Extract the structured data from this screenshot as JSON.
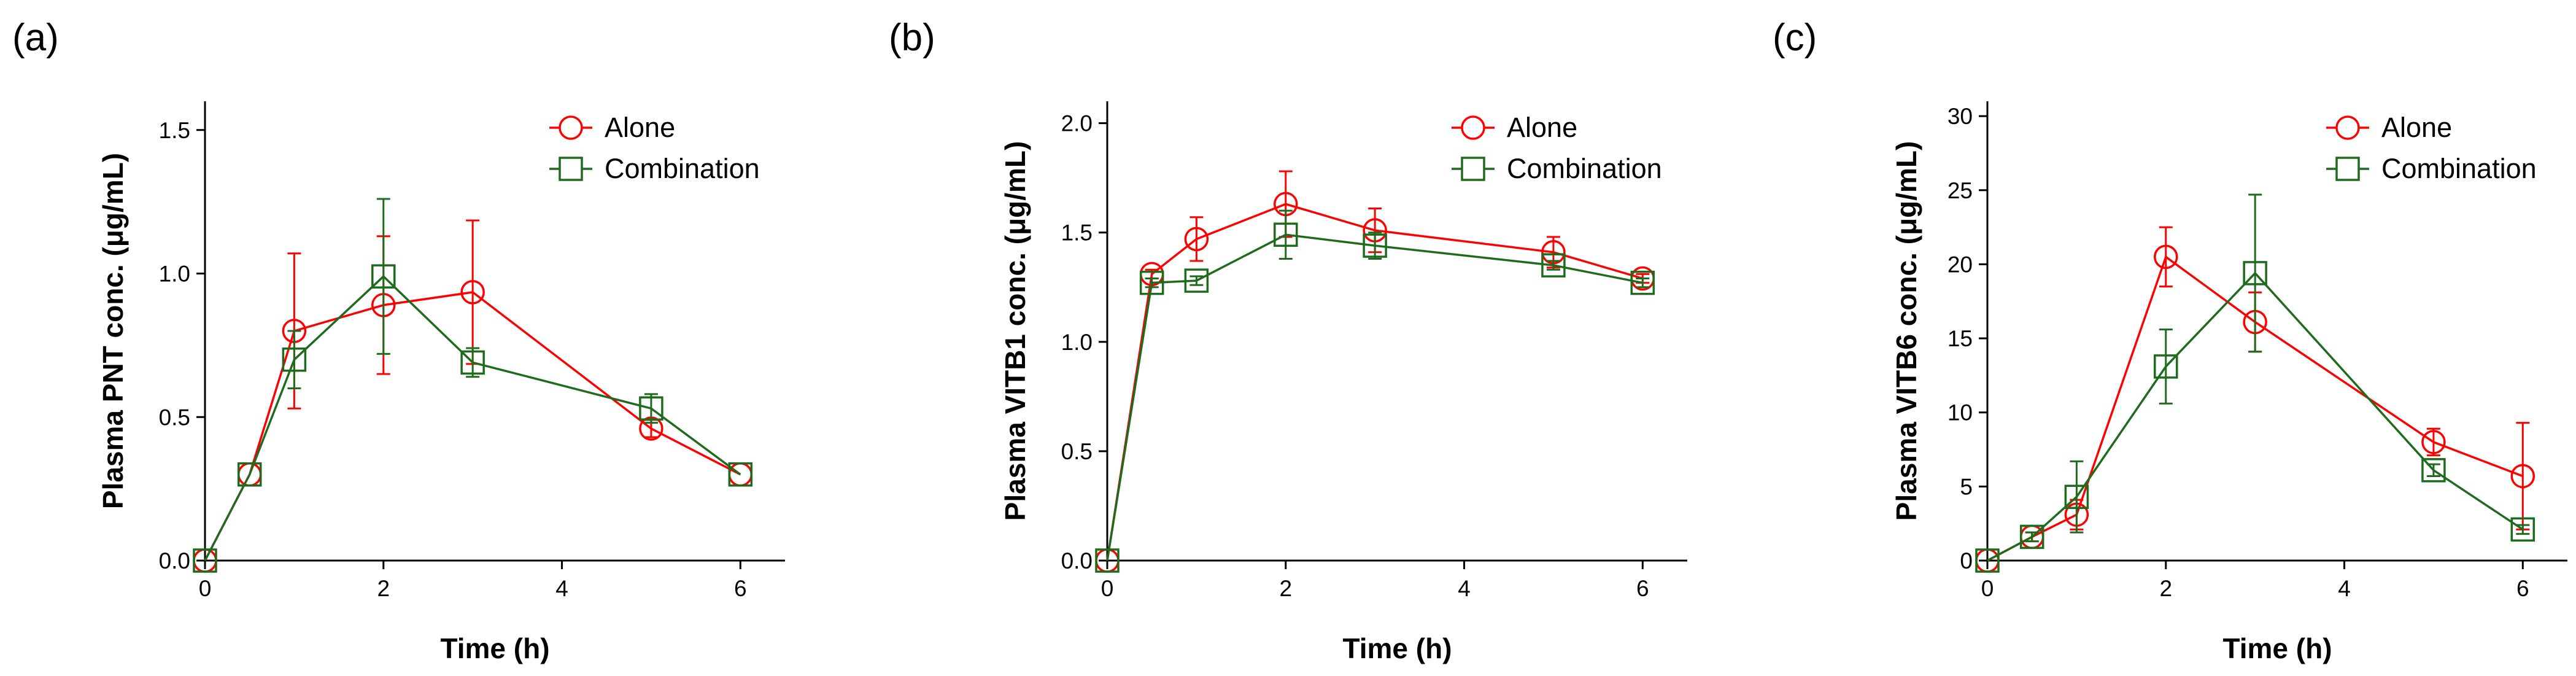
{
  "chart_data": [
    {
      "type": "line",
      "panel_label": "(a)",
      "xlabel": "Time (h)",
      "ylabel": "Plasma PNT conc. (μg/mL)",
      "xlim": [
        0,
        6.5
      ],
      "ylim": [
        0,
        1.6
      ],
      "xticks": [
        0,
        2,
        4,
        6
      ],
      "xtick_labels": [
        "0",
        "2",
        "4",
        "6"
      ],
      "yticks": [
        0,
        0.5,
        1.0,
        1.5
      ],
      "ytick_labels": [
        "0.0",
        "0.5",
        "1.0",
        "1.5"
      ],
      "series": [
        {
          "name": "Alone",
          "color": "#ff0000",
          "marker": "circle",
          "x": [
            0,
            0.5,
            1,
            2,
            3,
            5,
            6
          ],
          "y": [
            0,
            0.3,
            0.8,
            0.89,
            0.935,
            0.46,
            0.3
          ],
          "err": [
            0,
            0,
            0.27,
            0.24,
            0.25,
            0.03,
            0
          ]
        },
        {
          "name": "Combination",
          "color": "#1e6b1e",
          "marker": "square",
          "x": [
            0,
            0.5,
            1,
            2,
            3,
            5,
            6
          ],
          "y": [
            0,
            0.3,
            0.7,
            0.99,
            0.69,
            0.53,
            0.3
          ],
          "err": [
            0,
            0,
            0.1,
            0.27,
            0.05,
            0.05,
            0
          ]
        }
      ]
    },
    {
      "type": "line",
      "panel_label": "(b)",
      "xlabel": "Time (h)",
      "ylabel": "Plasma VITB1 conc. (μg/mL)",
      "xlim": [
        0,
        6.5
      ],
      "ylim": [
        0,
        2.1
      ],
      "xticks": [
        0,
        2,
        4,
        6
      ],
      "xtick_labels": [
        "0",
        "2",
        "4",
        "6"
      ],
      "yticks": [
        0,
        0.5,
        1.0,
        1.5,
        2.0
      ],
      "ytick_labels": [
        "0.0",
        "0.5",
        "1.0",
        "1.5",
        "2.0"
      ],
      "series": [
        {
          "name": "Alone",
          "color": "#ff0000",
          "marker": "circle",
          "x": [
            0,
            0.5,
            1,
            2,
            3,
            5,
            6
          ],
          "y": [
            0,
            1.31,
            1.47,
            1.63,
            1.51,
            1.41,
            1.29
          ],
          "err": [
            0,
            0.02,
            0.1,
            0.15,
            0.1,
            0.07,
            0.02
          ]
        },
        {
          "name": "Combination",
          "color": "#1e6b1e",
          "marker": "square",
          "x": [
            0,
            0.5,
            1,
            2,
            3,
            5,
            6
          ],
          "y": [
            0,
            1.27,
            1.28,
            1.49,
            1.44,
            1.35,
            1.27
          ],
          "err": [
            0,
            0.02,
            0.02,
            0.11,
            0.06,
            0.02,
            0.02
          ]
        }
      ]
    },
    {
      "type": "line",
      "panel_label": "(c)",
      "xlabel": "Time (h)",
      "ylabel": "Plasma VITB6 conc. (μg/mL)",
      "xlim": [
        0,
        6.5
      ],
      "ylim": [
        0,
        31
      ],
      "xticks": [
        0,
        2,
        4,
        6
      ],
      "xtick_labels": [
        "0",
        "2",
        "4",
        "6"
      ],
      "yticks": [
        0,
        5,
        10,
        15,
        20,
        25,
        30
      ],
      "ytick_labels": [
        "0",
        "5",
        "10",
        "15",
        "20",
        "25",
        "30"
      ],
      "series": [
        {
          "name": "Alone",
          "color": "#ff0000",
          "marker": "circle",
          "x": [
            0,
            0.5,
            1,
            2,
            3,
            5,
            6
          ],
          "y": [
            0,
            1.6,
            3.1,
            20.5,
            16.1,
            8.0,
            5.7
          ],
          "err": [
            0,
            0.3,
            1.0,
            2.0,
            2.0,
            0.9,
            3.6
          ]
        },
        {
          "name": "Combination",
          "color": "#1e6b1e",
          "marker": "square",
          "x": [
            0,
            0.5,
            1,
            2,
            3,
            5,
            6
          ],
          "y": [
            0,
            1.6,
            4.3,
            13.1,
            19.4,
            6.1,
            2.1
          ],
          "err": [
            0,
            0.3,
            2.4,
            2.5,
            5.3,
            0.4,
            0.3
          ]
        }
      ]
    }
  ]
}
